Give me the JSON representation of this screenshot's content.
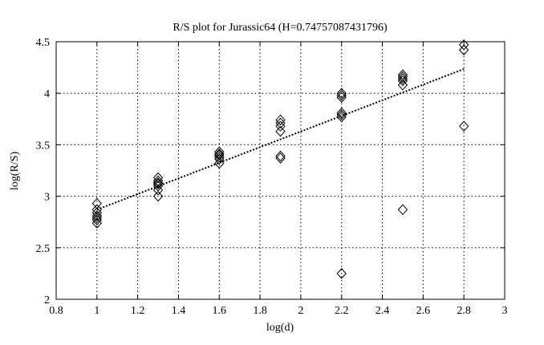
{
  "chart_data": {
    "type": "scatter",
    "title": "R/S plot for Jurassic64 (H=0.74757087431796)",
    "xlabel": "log(d)",
    "ylabel": "log(R/S)",
    "xlim": [
      0.8,
      3
    ],
    "ylim": [
      2,
      4.5
    ],
    "xticks": [
      "0.8",
      "1",
      "1.2",
      "1.4",
      "1.6",
      "1.8",
      "2",
      "2.2",
      "2.4",
      "2.6",
      "2.8",
      "3"
    ],
    "yticks": [
      "2",
      "2.5",
      "3",
      "3.5",
      "4",
      "4.5"
    ],
    "grid": true,
    "series": [
      {
        "marker": "diamond",
        "color": "#000000",
        "points": [
          [
            1.0,
            2.93
          ],
          [
            1.0,
            2.87
          ],
          [
            1.0,
            2.84
          ],
          [
            1.0,
            2.81
          ],
          [
            1.0,
            2.79
          ],
          [
            1.0,
            2.77
          ],
          [
            1.0,
            2.74
          ],
          [
            1.3,
            3.18
          ],
          [
            1.3,
            3.15
          ],
          [
            1.3,
            3.13
          ],
          [
            1.3,
            3.12
          ],
          [
            1.3,
            3.1
          ],
          [
            1.3,
            3.06
          ],
          [
            1.3,
            3.0
          ],
          [
            1.6,
            3.43
          ],
          [
            1.6,
            3.41
          ],
          [
            1.6,
            3.4
          ],
          [
            1.6,
            3.38
          ],
          [
            1.6,
            3.36
          ],
          [
            1.6,
            3.32
          ],
          [
            1.9,
            3.74
          ],
          [
            1.9,
            3.71
          ],
          [
            1.9,
            3.68
          ],
          [
            1.9,
            3.63
          ],
          [
            1.9,
            3.39
          ],
          [
            1.9,
            3.37
          ],
          [
            2.2,
            4.0
          ],
          [
            2.2,
            3.98
          ],
          [
            2.2,
            3.96
          ],
          [
            2.2,
            3.81
          ],
          [
            2.2,
            3.79
          ],
          [
            2.2,
            3.77
          ],
          [
            2.2,
            2.25
          ],
          [
            2.5,
            4.18
          ],
          [
            2.5,
            4.16
          ],
          [
            2.5,
            4.14
          ],
          [
            2.5,
            4.12
          ],
          [
            2.5,
            4.08
          ],
          [
            2.5,
            2.87
          ],
          [
            2.8,
            4.47
          ],
          [
            2.8,
            4.42
          ],
          [
            2.8,
            3.68
          ]
        ]
      },
      {
        "style": "dotted-line",
        "color": "#000000",
        "x": [
          1.0,
          2.8
        ],
        "y": [
          2.87,
          4.235
        ]
      }
    ]
  }
}
